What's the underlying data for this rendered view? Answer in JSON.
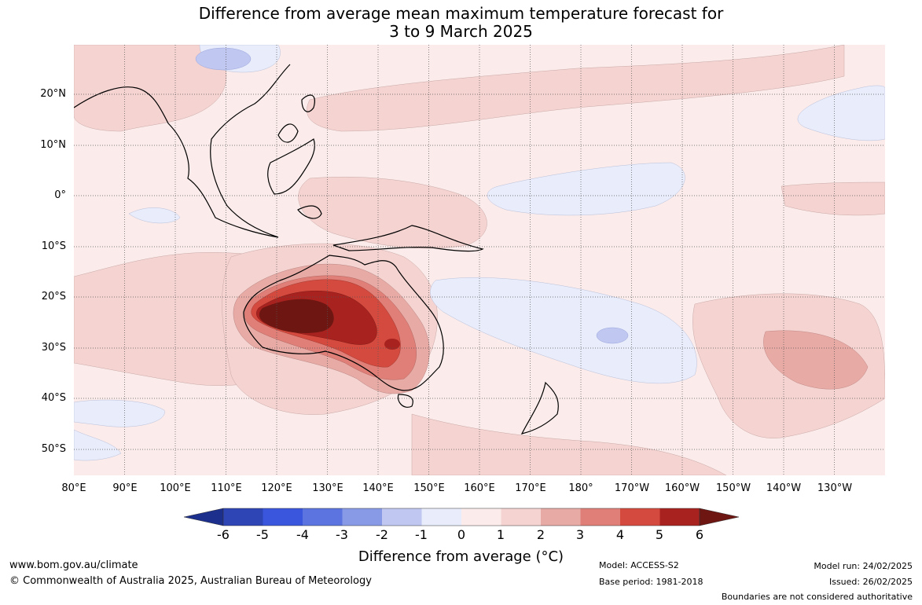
{
  "title": {
    "line1": "Difference from average mean maximum temperature forecast for",
    "line2": "3 to 9 March 2025"
  },
  "map": {
    "lat_labels": [
      "20°N",
      "10°N",
      "0°",
      "10°S",
      "20°S",
      "30°S",
      "40°S",
      "50°S"
    ],
    "lon_labels": [
      "80°E",
      "90°E",
      "100°E",
      "110°E",
      "120°E",
      "130°E",
      "140°E",
      "150°E",
      "160°E",
      "170°E",
      "180°",
      "170°W",
      "160°W",
      "150°W",
      "140°W",
      "130°W"
    ],
    "colors": {
      "neg6": "#1c2f8c",
      "neg5": "#2e45b5",
      "neg4": "#3a56dd",
      "neg3": "#5b74e0",
      "neg2": "#8899e6",
      "neg1": "#c0c8f2",
      "neg0": "#e8ecfb",
      "pos0": "#fbeceb",
      "pos1": "#f4d3d1",
      "pos2": "#e8aaa5",
      "pos3": "#e07f78",
      "pos4": "#d44a3e",
      "pos5": "#a8231f",
      "pos6": "#6e1612"
    }
  },
  "colorbar": {
    "ticks": [
      "-6",
      "-5",
      "-4",
      "-3",
      "-2",
      "-1",
      "0",
      "1",
      "2",
      "3",
      "4",
      "5",
      "6"
    ],
    "label": "Difference from average (°C)"
  },
  "footer": {
    "website": "www.bom.gov.au/climate",
    "copyright": "© Commonwealth of Australia 2025, Australian Bureau of Meteorology",
    "model": "Model: ACCESS-S2",
    "base_period": "Base period: 1981-2018",
    "model_run": "Model run: 24/02/2025",
    "issued": "Issued: 26/02/2025",
    "disclaimer": "Boundaries are not considered authoritative"
  }
}
